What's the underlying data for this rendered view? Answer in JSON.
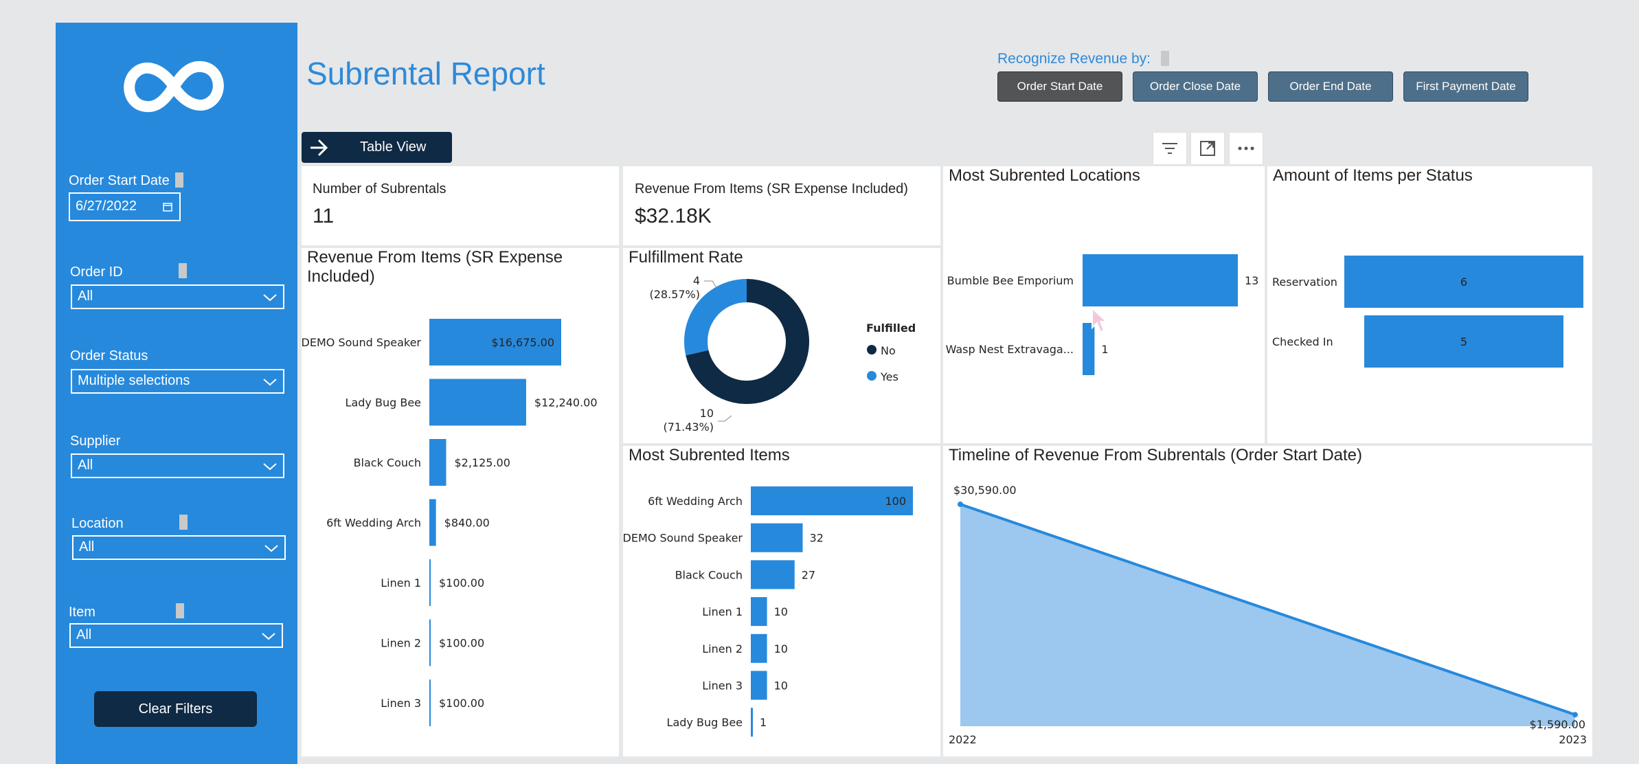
{
  "report_title": "Subrental Report",
  "recognize": {
    "label": "Recognize Revenue by:",
    "buttons": [
      "Order Start Date",
      "Order Close Date",
      "Order End Date",
      "First Payment Date"
    ],
    "active": "Order Start Date"
  },
  "table_view_label": "Table View",
  "sidebar": {
    "order_start_date_label": "Order Start Date",
    "order_start_date_value": "6/27/2022",
    "order_id_label": "Order ID",
    "order_id_value": "All",
    "order_status_label": "Order Status",
    "order_status_value": "Multiple selections",
    "supplier_label": "Supplier",
    "supplier_value": "All",
    "location_label": "Location",
    "location_value": "All",
    "item_label": "Item",
    "item_value": "All",
    "clear_filters": "Clear Filters"
  },
  "cards": {
    "subrentals_label": "Number of Subrentals",
    "subrentals_value": "11",
    "revenue_label": "Revenue From Items (SR Expense Included)",
    "revenue_value": "$32.18K"
  },
  "panels": {
    "revenue_items_title_1": "Revenue From Items (SR Expense",
    "revenue_items_title_2": "Included)",
    "fulfillment_title": "Fulfillment Rate",
    "locations_title": "Most Subrented Locations",
    "status_title": "Amount of Items per Status",
    "items_title": "Most Subrented Items",
    "timeline_title": "Timeline of Revenue From Subrentals (Order Start Date)"
  },
  "chart_data": [
    {
      "type": "bar",
      "orientation": "horizontal",
      "categories": [
        "DEMO Sound Speaker",
        "Lady Bug Bee",
        "Black Couch",
        "6ft Wedding Arch",
        "Linen 1",
        "Linen 2",
        "Linen 3"
      ],
      "values": [
        16675,
        12240,
        2125,
        840,
        100,
        100,
        100
      ],
      "labels": [
        "$16,675.00",
        "$12,240.00",
        "$2,125.00",
        "$840.00",
        "$100.00",
        "$100.00",
        "$100.00"
      ],
      "color": "#2789dc"
    },
    {
      "type": "pie",
      "donut": true,
      "legend_title": "Fulfilled",
      "categories": [
        "No",
        "Yes"
      ],
      "values": [
        10,
        4
      ],
      "labels": [
        "10",
        "4"
      ],
      "percents": [
        "(71.43%)",
        "(28.57%)"
      ],
      "colors": [
        "#0f2a44",
        "#2789dc"
      ]
    },
    {
      "type": "bar",
      "orientation": "horizontal",
      "categories": [
        "Bumble Bee Emporium",
        "Wasp Nest Extravaga..."
      ],
      "values": [
        13,
        1
      ],
      "color": "#2789dc"
    },
    {
      "type": "bar",
      "orientation": "horizontal",
      "categories": [
        "Reservation",
        "Checked In"
      ],
      "values": [
        6,
        5
      ],
      "color": "#2789dc"
    },
    {
      "type": "bar",
      "orientation": "horizontal",
      "categories": [
        "6ft Wedding Arch",
        "DEMO Sound Speaker",
        "Black Couch",
        "Linen 1",
        "Linen 2",
        "Linen 3",
        "Lady Bug Bee"
      ],
      "values": [
        100,
        32,
        27,
        10,
        10,
        10,
        1
      ],
      "color": "#2789dc"
    },
    {
      "type": "area",
      "x": [
        "2022",
        "2023"
      ],
      "values": [
        30590,
        1590
      ],
      "labels": [
        "$30,590.00",
        "$1,590.00"
      ],
      "color": "#2789dc"
    }
  ]
}
